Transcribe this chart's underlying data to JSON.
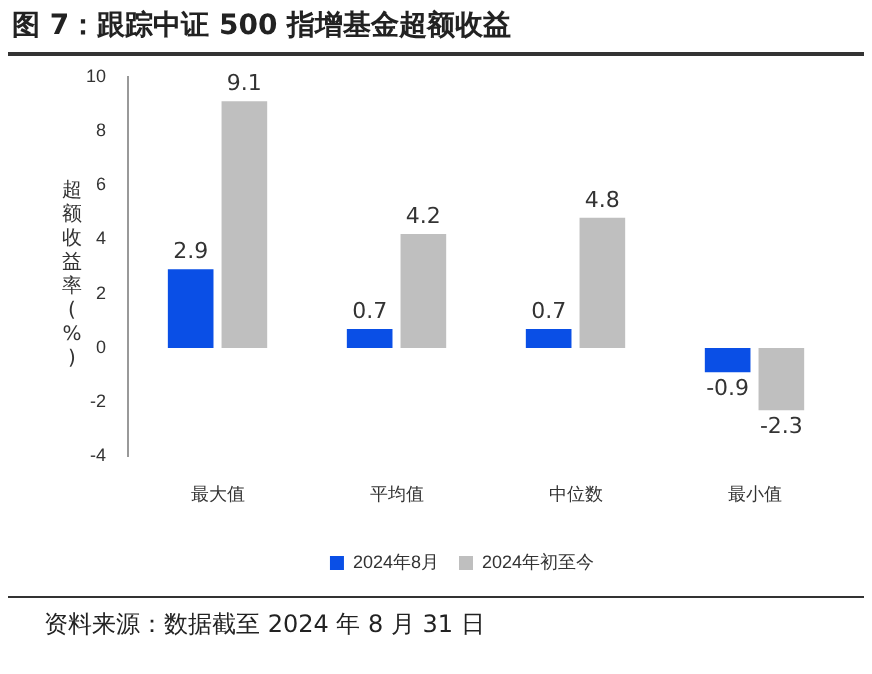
{
  "chart_data": {
    "type": "bar",
    "title": "图 7：跟踪中证 500 指增基金超额收益",
    "ylabel": "超额收益率(%)",
    "categories": [
      "最大值",
      "平均值",
      "中位数",
      "最小值"
    ],
    "series": [
      {
        "name": "2024年8月",
        "color": "#0a4fe6",
        "values": [
          2.9,
          0.7,
          0.7,
          -0.9
        ]
      },
      {
        "name": "2024年初至今",
        "color": "#bfbfbf",
        "values": [
          9.1,
          4.2,
          4.8,
          -2.3
        ]
      }
    ],
    "ylim": [
      -4,
      10
    ],
    "yticks": [
      -4,
      -2,
      0,
      2,
      4,
      6,
      8,
      10
    ],
    "grid": false,
    "legend": "bottom",
    "data_labels": true,
    "annotations": [
      "资料来源：数据截至 2024 年 8 月 31 日"
    ]
  }
}
